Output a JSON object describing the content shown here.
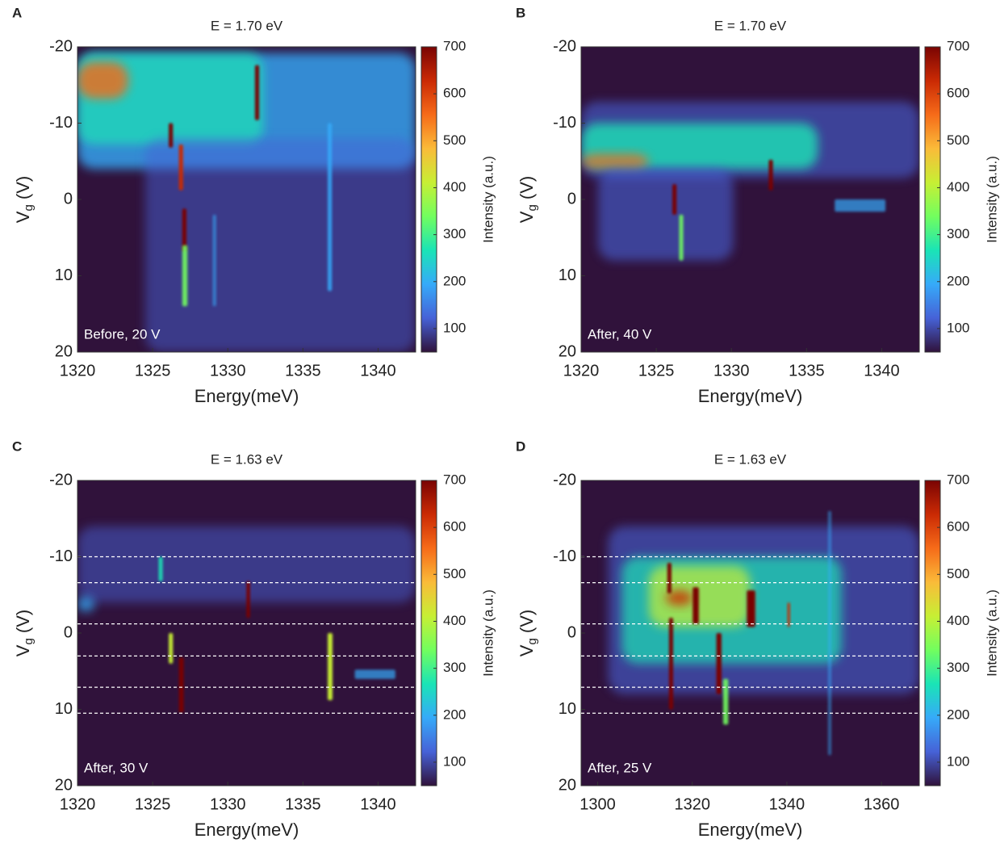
{
  "chart_data": [
    {
      "type": "heatmap",
      "panel_label": "A",
      "title": "E = 1.70 eV",
      "annotation": "Before, 20 V",
      "xlabel": "Energy(meV)",
      "ylabel_main": "V",
      "ylabel_subscript": "g",
      "ylabel_suffix": " (V)",
      "xlim": [
        1320,
        1342.5
      ],
      "xticks": [
        1320,
        1325,
        1330,
        1335,
        1340
      ],
      "ylim": [
        -20,
        20
      ],
      "y_inverted": true,
      "yticks": [
        -20,
        -10,
        0,
        10,
        20
      ],
      "clim": [
        50,
        700
      ],
      "cticks": [
        100,
        200,
        300,
        400,
        500,
        600,
        700
      ],
      "colorbar_label": "Intensity (a.u.)",
      "colormap": [
        "#30123b",
        "#4662d7",
        "#36aaf9",
        "#1ae4b6",
        "#72fe5e",
        "#c7ef34",
        "#fabb39",
        "#f66b19",
        "#ca2a04",
        "#7a0403"
      ],
      "hlines": []
    },
    {
      "type": "heatmap",
      "panel_label": "B",
      "title": "E = 1.70 eV",
      "annotation": "After, 40 V",
      "xlabel": "Energy(meV)",
      "ylabel_main": "V",
      "ylabel_subscript": "g",
      "ylabel_suffix": " (V)",
      "xlim": [
        1320,
        1342.5
      ],
      "xticks": [
        1320,
        1325,
        1330,
        1335,
        1340
      ],
      "ylim": [
        -20,
        20
      ],
      "y_inverted": true,
      "yticks": [
        -20,
        -10,
        0,
        10,
        20
      ],
      "clim": [
        50,
        700
      ],
      "cticks": [
        100,
        200,
        300,
        400,
        500,
        600,
        700
      ],
      "colorbar_label": "Intensity (a.u.)",
      "colormap": [
        "#30123b",
        "#4662d7",
        "#36aaf9",
        "#1ae4b6",
        "#72fe5e",
        "#c7ef34",
        "#fabb39",
        "#f66b19",
        "#ca2a04",
        "#7a0403"
      ],
      "hlines": []
    },
    {
      "type": "heatmap",
      "panel_label": "C",
      "title": "E = 1.63 eV",
      "annotation": "After, 30 V",
      "xlabel": "Energy(meV)",
      "ylabel_main": "V",
      "ylabel_subscript": "g",
      "ylabel_suffix": " (V)",
      "xlim": [
        1320,
        1342.5
      ],
      "xticks": [
        1320,
        1325,
        1330,
        1335,
        1340
      ],
      "ylim": [
        -20,
        20
      ],
      "y_inverted": true,
      "yticks": [
        -20,
        -10,
        0,
        10,
        20
      ],
      "clim": [
        50,
        700
      ],
      "cticks": [
        100,
        200,
        300,
        400,
        500,
        600,
        700
      ],
      "colorbar_label": "Intensity (a.u.)",
      "colormap": [
        "#30123b",
        "#4662d7",
        "#36aaf9",
        "#1ae4b6",
        "#72fe5e",
        "#c7ef34",
        "#fabb39",
        "#f66b19",
        "#ca2a04",
        "#7a0403"
      ],
      "hlines": [
        -10,
        -6.6,
        -1.2,
        3,
        7.1,
        10.5
      ]
    },
    {
      "type": "heatmap",
      "panel_label": "D",
      "title": "E = 1.63 eV",
      "annotation": "After, 25 V",
      "xlabel": "Energy(meV)",
      "ylabel_main": "V",
      "ylabel_subscript": "g",
      "ylabel_suffix": " (V)",
      "xlim": [
        1296.5,
        1368
      ],
      "xticks": [
        1300,
        1320,
        1340,
        1360
      ],
      "ylim": [
        -20,
        20
      ],
      "y_inverted": true,
      "yticks": [
        -20,
        -10,
        0,
        10,
        20
      ],
      "clim": [
        50,
        700
      ],
      "cticks": [
        100,
        200,
        300,
        400,
        500,
        600,
        700
      ],
      "colorbar_label": "Intensity (a.u.)",
      "colormap": [
        "#30123b",
        "#4662d7",
        "#36aaf9",
        "#1ae4b6",
        "#72fe5e",
        "#c7ef34",
        "#fabb39",
        "#f66b19",
        "#ca2a04",
        "#7a0403"
      ],
      "hlines": [
        -10,
        -6.6,
        -1.2,
        3,
        7.1,
        10.5
      ]
    }
  ]
}
